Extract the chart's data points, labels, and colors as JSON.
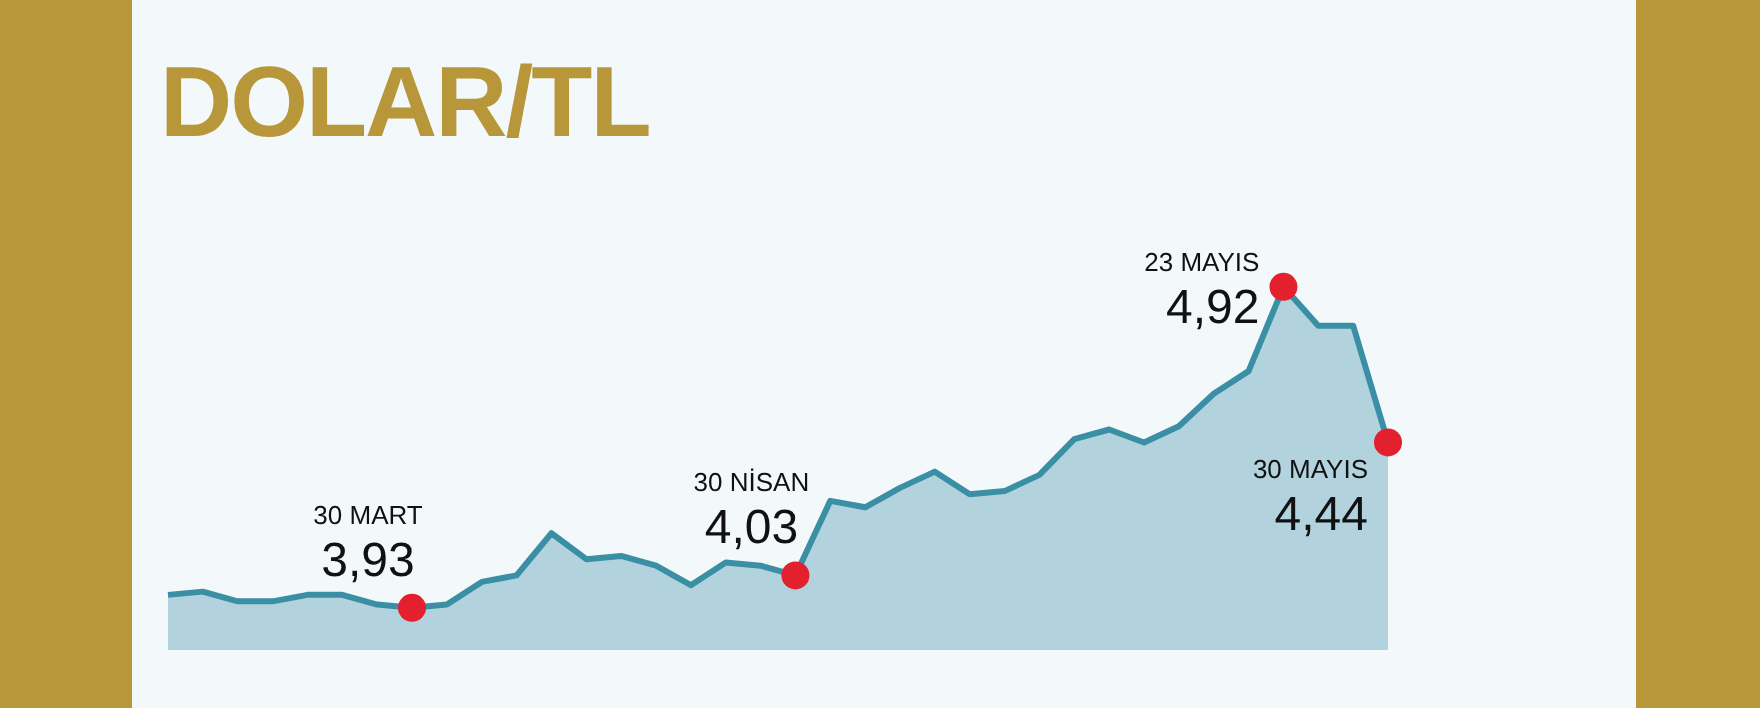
{
  "chart_data": {
    "type": "area",
    "title": "DOLAR/TL",
    "categories": [
      null,
      null,
      null,
      null,
      null,
      null,
      null,
      null,
      null,
      null,
      null,
      null,
      null,
      null,
      null,
      null,
      null,
      null,
      null,
      null,
      null,
      null,
      null,
      null,
      null,
      null,
      null,
      null,
      null,
      null,
      null,
      null,
      null,
      null,
      null,
      null
    ],
    "series": [
      {
        "color": "#3a8fa5",
        "values": [
          3.97,
          3.98,
          3.95,
          3.95,
          3.97,
          3.97,
          3.94,
          3.93,
          3.94,
          4.01,
          4.03,
          4.16,
          4.08,
          4.09,
          4.06,
          4.0,
          4.07,
          4.06,
          4.03,
          4.26,
          4.24,
          4.3,
          4.35,
          4.28,
          4.29,
          4.34,
          4.45,
          4.48,
          4.44,
          4.49,
          4.59,
          4.66,
          4.92,
          4.8,
          4.8,
          4.44
        ],
        "colors": [
          null,
          null,
          null,
          null,
          null,
          null,
          null,
          "#e3202e",
          null,
          null,
          null,
          null,
          null,
          null,
          null,
          null,
          null,
          null,
          "#e3202e",
          null,
          null,
          null,
          null,
          null,
          null,
          null,
          null,
          null,
          null,
          null,
          null,
          null,
          "#e3202e",
          null,
          null,
          "#e3202e"
        ],
        "value_labels": [
          null,
          null,
          null,
          null,
          null,
          null,
          null,
          "3,93",
          null,
          null,
          null,
          null,
          null,
          null,
          null,
          null,
          null,
          null,
          "4,03",
          null,
          null,
          null,
          null,
          null,
          null,
          null,
          null,
          null,
          null,
          null,
          null,
          null,
          "4,92",
          null,
          null,
          "4,44"
        ]
      }
    ],
    "annotations": [
      "30 MART",
      "30 NİSAN",
      "23 MAYIS",
      "30 MAYIS"
    ],
    "tick_labels": false
  }
}
